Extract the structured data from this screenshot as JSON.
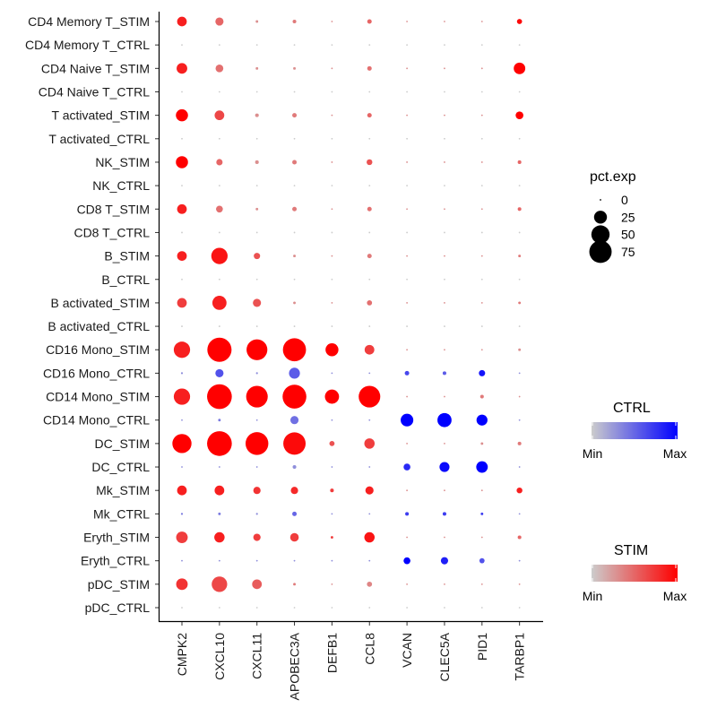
{
  "chart_data": {
    "type": "dotplot",
    "rows": [
      "CD4 Memory T_STIM",
      "CD4 Memory T_CTRL",
      "CD4 Naive T_STIM",
      "CD4 Naive T_CTRL",
      "T activated_STIM",
      "T activated_CTRL",
      "NK_STIM",
      "NK_CTRL",
      "CD8 T_STIM",
      "CD8 T_CTRL",
      "B_STIM",
      "B_CTRL",
      "B activated_STIM",
      "B activated_CTRL",
      "CD16 Mono_STIM",
      "CD16 Mono_CTRL",
      "CD14 Mono_STIM",
      "CD14 Mono_CTRL",
      "DC_STIM",
      "DC_CTRL",
      "Mk_STIM",
      "Mk_CTRL",
      "Eryth_STIM",
      "Eryth_CTRL",
      "pDC_STIM",
      "pDC_CTRL"
    ],
    "genes": [
      "CMPK2",
      "CXCL10",
      "CXCL11",
      "APOBEC3A",
      "DEFB1",
      "CCL8",
      "VCAN",
      "CLEC5A",
      "PID1",
      "TARBP1"
    ],
    "pct_exp": [
      [
        14,
        10,
        1,
        2,
        0,
        3,
        0,
        0,
        0,
        4
      ],
      [
        0,
        0,
        0,
        0,
        0,
        0,
        0,
        0,
        0,
        0
      ],
      [
        17,
        9,
        1,
        1,
        0,
        3,
        0,
        0,
        0,
        20
      ],
      [
        0,
        0,
        0,
        0,
        0,
        0,
        0,
        0,
        0,
        0
      ],
      [
        22,
        14,
        2,
        3,
        0,
        3,
        0,
        0,
        0,
        9
      ],
      [
        0,
        0,
        0,
        0,
        0,
        0,
        0,
        0,
        0,
        0
      ],
      [
        22,
        6,
        2,
        3,
        0,
        5,
        0,
        0,
        0,
        2
      ],
      [
        0,
        0,
        0,
        0,
        0,
        0,
        0,
        0,
        0,
        0
      ],
      [
        14,
        7,
        1,
        3,
        0,
        3,
        0,
        0,
        0,
        2
      ],
      [
        0,
        0,
        0,
        0,
        0,
        0,
        0,
        0,
        0,
        0
      ],
      [
        14,
        40,
        6,
        1,
        0,
        3,
        0,
        0,
        0,
        1
      ],
      [
        0,
        0,
        0,
        0,
        0,
        0,
        0,
        0,
        0,
        0
      ],
      [
        14,
        30,
        10,
        1,
        0,
        4,
        0,
        0,
        0,
        1
      ],
      [
        0,
        0,
        0,
        0,
        0,
        0,
        0,
        0,
        0,
        0
      ],
      [
        40,
        88,
        65,
        80,
        25,
        14,
        0,
        0,
        0,
        1
      ],
      [
        0.5,
        10,
        0.5,
        18,
        0,
        0,
        3,
        2,
        6,
        0
      ],
      [
        40,
        92,
        70,
        85,
        30,
        70,
        0,
        0,
        2,
        0
      ],
      [
        0,
        1,
        0,
        10,
        0,
        0,
        24,
        30,
        18,
        0
      ],
      [
        55,
        92,
        78,
        75,
        4,
        16,
        0,
        0,
        1,
        2
      ],
      [
        0,
        0,
        0,
        2,
        0,
        0,
        7,
        15,
        20,
        0
      ],
      [
        14,
        14,
        8,
        8,
        2,
        10,
        0,
        0,
        0,
        5
      ],
      [
        0.5,
        1,
        0.5,
        3,
        0,
        0,
        2,
        2,
        1,
        0
      ],
      [
        20,
        16,
        8,
        11,
        1,
        16,
        0,
        0,
        0,
        2
      ],
      [
        0,
        0,
        0,
        0,
        0,
        0,
        7,
        8,
        4,
        0
      ],
      [
        20,
        36,
        14,
        1,
        0,
        4,
        0,
        0,
        0,
        0
      ],
      [
        0,
        0,
        0,
        0,
        0,
        0,
        0,
        0,
        0,
        0
      ]
    ],
    "avg_exp_scaled": [
      [
        0.85,
        0.5,
        0.3,
        0.4,
        0.3,
        0.5,
        0.3,
        0.3,
        0.3,
        0.95
      ],
      [
        0,
        0,
        0,
        0,
        0,
        0,
        0,
        0,
        0,
        0
      ],
      [
        0.85,
        0.45,
        0.3,
        0.3,
        0.3,
        0.45,
        0.3,
        0.3,
        0.3,
        1.0
      ],
      [
        0,
        0,
        0,
        0,
        0,
        0,
        0,
        0,
        0,
        0
      ],
      [
        1.0,
        0.65,
        0.3,
        0.4,
        0.3,
        0.5,
        0.3,
        0.3,
        0.3,
        1.0
      ],
      [
        0,
        0,
        0,
        0,
        0,
        0,
        0,
        0,
        0,
        0
      ],
      [
        1.0,
        0.5,
        0.3,
        0.4,
        0.3,
        0.6,
        0.3,
        0.3,
        0.3,
        0.5
      ],
      [
        0,
        0,
        0,
        0,
        0,
        0,
        0,
        0,
        0,
        0
      ],
      [
        0.85,
        0.45,
        0.3,
        0.4,
        0.3,
        0.45,
        0.3,
        0.3,
        0.3,
        0.5
      ],
      [
        0,
        0,
        0,
        0,
        0,
        0,
        0,
        0,
        0,
        0
      ],
      [
        0.85,
        0.9,
        0.6,
        0.3,
        0.3,
        0.4,
        0.3,
        0.3,
        0.3,
        0.4
      ],
      [
        0,
        0,
        0,
        0,
        0,
        0,
        0,
        0,
        0,
        0
      ],
      [
        0.7,
        0.85,
        0.6,
        0.3,
        0.3,
        0.45,
        0.3,
        0.3,
        0.3,
        0.4
      ],
      [
        0,
        0,
        0,
        0,
        0,
        0,
        0,
        0,
        0,
        0
      ],
      [
        0.85,
        1.0,
        1.0,
        1.0,
        1.0,
        0.7,
        0.3,
        0.3,
        0.3,
        0.3
      ],
      [
        0.3,
        0.6,
        0.3,
        0.55,
        0.3,
        0.3,
        0.65,
        0.55,
        0.9,
        0.3
      ],
      [
        0.85,
        1.0,
        1.0,
        1.0,
        1.0,
        1.0,
        0.3,
        0.3,
        0.4,
        0.3
      ],
      [
        0.3,
        0.4,
        0.3,
        0.45,
        0.3,
        0.3,
        1.0,
        1.0,
        1.0,
        0.3
      ],
      [
        1.0,
        1.0,
        1.0,
        0.95,
        0.6,
        0.7,
        0.3,
        0.3,
        0.3,
        0.4
      ],
      [
        0.3,
        0.3,
        0.3,
        0.3,
        0.3,
        0.3,
        0.8,
        0.95,
        1.0,
        0.3
      ],
      [
        0.85,
        0.85,
        0.75,
        0.8,
        0.7,
        0.85,
        0.3,
        0.3,
        0.3,
        0.85
      ],
      [
        0.4,
        0.4,
        0.3,
        0.5,
        0.3,
        0.3,
        0.7,
        0.7,
        0.7,
        0.3
      ],
      [
        0.7,
        0.85,
        0.7,
        0.7,
        0.7,
        0.9,
        0.3,
        0.3,
        0.3,
        0.5
      ],
      [
        0.3,
        0.3,
        0.3,
        0.3,
        0.3,
        0.3,
        1.0,
        0.85,
        0.6,
        0.3
      ],
      [
        0.75,
        0.65,
        0.55,
        0.4,
        0.3,
        0.35,
        0.3,
        0.3,
        0.3,
        0.3
      ],
      [
        0,
        0,
        0,
        0,
        0,
        0,
        0,
        0,
        0,
        0
      ]
    ],
    "size_legend": {
      "title": "pct.exp",
      "breaks": [
        "0",
        "25",
        "50",
        "75"
      ],
      "max_pct": 100
    },
    "color_legends": [
      {
        "title": "CTRL",
        "min_label": "Min",
        "max_label": "Max",
        "low": "#cccccc",
        "high": "#0000ff"
      },
      {
        "title": "STIM",
        "min_label": "Min",
        "max_label": "Max",
        "low": "#cccccc",
        "high": "#ff0000"
      }
    ],
    "grid": false,
    "legend_position": "right"
  }
}
